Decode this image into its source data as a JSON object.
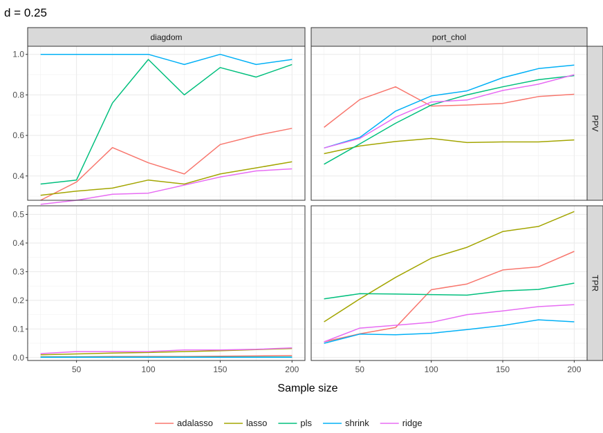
{
  "title": "d = 0.25",
  "xlabel": "Sample size",
  "columns": [
    "diagdom",
    "port_chol"
  ],
  "rows": [
    "PPV",
    "TPR"
  ],
  "legend": {
    "position": "bottom",
    "entries": [
      {
        "name": "adalasso",
        "color": "#F8766D"
      },
      {
        "name": "lasso",
        "color": "#A3A500"
      },
      {
        "name": "pls",
        "color": "#00BF7D"
      },
      {
        "name": "shrink",
        "color": "#00B0F6"
      },
      {
        "name": "ridge",
        "color": "#E76BF3"
      }
    ]
  },
  "chart_data": {
    "type": "line",
    "title": "d = 0.25",
    "xlabel": "Sample size",
    "ylabel": "",
    "grid": true,
    "x": [
      25,
      50,
      75,
      100,
      125,
      150,
      175,
      200
    ],
    "xticks": [
      50,
      100,
      150,
      200
    ],
    "xlim": [
      16,
      209
    ],
    "panels": [
      {
        "column": "diagdom",
        "row": "PPV",
        "ylim": [
          0.28,
          1.04
        ],
        "yticks": [
          "0.4",
          "0.6",
          "0.8",
          "1.0"
        ],
        "series": [
          {
            "name": "adalasso",
            "values": [
              0.28,
              0.37,
              0.54,
              0.465,
              0.41,
              0.555,
              0.6,
              0.635
            ]
          },
          {
            "name": "lasso",
            "values": [
              0.305,
              0.325,
              0.34,
              0.38,
              0.36,
              0.41,
              0.44,
              0.47
            ]
          },
          {
            "name": "pls",
            "values": [
              0.36,
              0.38,
              0.76,
              0.975,
              0.8,
              0.935,
              0.888,
              0.95
            ]
          },
          {
            "name": "shrink",
            "values": [
              1.0,
              1.0,
              1.0,
              1.0,
              0.95,
              1.0,
              0.95,
              0.975
            ]
          },
          {
            "name": "ridge",
            "values": [
              0.26,
              0.28,
              0.31,
              0.315,
              0.355,
              0.395,
              0.425,
              0.435
            ]
          }
        ]
      },
      {
        "column": "port_chol",
        "row": "PPV",
        "ylim": [
          0.28,
          1.04
        ],
        "yticks": [
          "0.4",
          "0.6",
          "0.8",
          "1.0"
        ],
        "series": [
          {
            "name": "adalasso",
            "values": [
              0.64,
              0.777,
              0.84,
              0.745,
              0.75,
              0.758,
              0.792,
              0.803
            ]
          },
          {
            "name": "lasso",
            "values": [
              0.51,
              0.548,
              0.57,
              0.585,
              0.565,
              0.568,
              0.568,
              0.578
            ]
          },
          {
            "name": "pls",
            "values": [
              0.458,
              0.558,
              0.66,
              0.75,
              0.8,
              0.84,
              0.875,
              0.895
            ]
          },
          {
            "name": "shrink",
            "values": [
              0.538,
              0.59,
              0.72,
              0.795,
              0.82,
              0.885,
              0.93,
              0.947
            ]
          },
          {
            "name": "ridge",
            "values": [
              0.538,
              0.585,
              0.69,
              0.765,
              0.775,
              0.822,
              0.853,
              0.9
            ]
          }
        ]
      },
      {
        "column": "diagdom",
        "row": "TPR",
        "ylim": [
          -0.01,
          0.53
        ],
        "yticks": [
          "0.0",
          "0.1",
          "0.2",
          "0.3",
          "0.4",
          "0.5"
        ],
        "series": [
          {
            "name": "adalasso",
            "values": [
              0.003,
              0.003,
              0.004,
              0.004,
              0.004,
              0.005,
              0.006,
              0.007
            ]
          },
          {
            "name": "lasso",
            "values": [
              0.01,
              0.013,
              0.016,
              0.018,
              0.021,
              0.024,
              0.028,
              0.032
            ]
          },
          {
            "name": "pls",
            "values": [
              0.002,
              0.002,
              0.002,
              0.002,
              0.002,
              0.002,
              0.002,
              0.002
            ]
          },
          {
            "name": "shrink",
            "values": [
              0.001,
              0.001,
              0.001,
              0.001,
              0.001,
              0.001,
              0.001,
              0.001
            ]
          },
          {
            "name": "ridge",
            "values": [
              0.014,
              0.021,
              0.021,
              0.021,
              0.027,
              0.027,
              0.029,
              0.034
            ]
          }
        ]
      },
      {
        "column": "port_chol",
        "row": "TPR",
        "ylim": [
          -0.01,
          0.53
        ],
        "yticks": [
          "0.0",
          "0.1",
          "0.2",
          "0.3",
          "0.4",
          "0.5"
        ],
        "series": [
          {
            "name": "adalasso",
            "values": [
              0.055,
              0.083,
              0.105,
              0.237,
              0.257,
              0.306,
              0.317,
              0.371
            ]
          },
          {
            "name": "lasso",
            "values": [
              0.125,
              0.205,
              0.28,
              0.347,
              0.385,
              0.44,
              0.458,
              0.51
            ]
          },
          {
            "name": "pls",
            "values": [
              0.205,
              0.223,
              0.222,
              0.22,
              0.218,
              0.233,
              0.238,
              0.26
            ]
          },
          {
            "name": "shrink",
            "values": [
              0.05,
              0.082,
              0.08,
              0.085,
              0.098,
              0.112,
              0.132,
              0.125
            ]
          },
          {
            "name": "ridge",
            "values": [
              0.055,
              0.103,
              0.113,
              0.123,
              0.15,
              0.163,
              0.178,
              0.185
            ]
          }
        ]
      }
    ]
  }
}
